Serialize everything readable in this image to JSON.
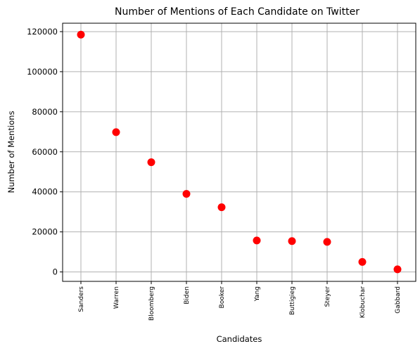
{
  "chart_data": {
    "type": "scatter",
    "title": "Number of Mentions of Each Candidate on Twitter",
    "xlabel": "Candidates",
    "ylabel": "Number of Mentions",
    "categories": [
      "Sanders",
      "Warren",
      "Bloomberg",
      "Biden",
      "Booker",
      "Yang",
      "Buttigieg",
      "Steyer",
      "Klobuchar",
      "Gabbard"
    ],
    "values": [
      118500,
      69800,
      54800,
      39000,
      32300,
      15700,
      15400,
      15000,
      5000,
      1300
    ],
    "yticks": [
      0,
      20000,
      40000,
      60000,
      80000,
      100000,
      120000
    ],
    "ylim": [
      -4700,
      124200
    ],
    "grid": true,
    "marker_color": "#ff0000"
  }
}
